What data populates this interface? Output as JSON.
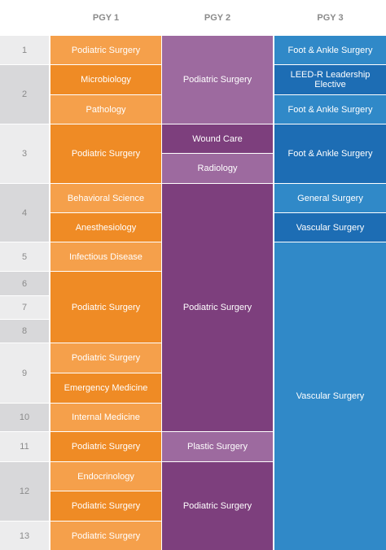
{
  "header": {
    "columns": [
      "PGY 1",
      "PGY 2",
      "PGY 3"
    ]
  },
  "rows": [
    "1",
    "2",
    "3",
    "4",
    "5",
    "6",
    "7",
    "8",
    "9",
    "10",
    "11",
    "12",
    "13"
  ],
  "pgy1": [
    "Podiatric Surgery",
    "Microbiology",
    "Pathology",
    "Podiatric Surgery",
    "Behavioral Science",
    "Anesthesiology",
    "Infectious Disease",
    "Podiatric Surgery",
    "Podiatric Surgery",
    "Emergency Medicine",
    "Internal Medicine",
    "Podiatric Surgery",
    "Endocrinology",
    "Podiatric Surgery",
    "Podiatric Surgery"
  ],
  "pgy2": [
    "Podiatric Surgery",
    "Wound Care",
    "Radiology",
    "Podiatric Surgery",
    "Plastic Surgery",
    "Podiatric Surgery"
  ],
  "pgy3": [
    "Foot & Ankle Surgery",
    "LEED-R Leadership Elective",
    "Foot & Ankle Surgery",
    "Foot & Ankle Surgery",
    "General Surgery",
    "Vascular Surgery",
    "Vascular Surgery"
  ]
}
